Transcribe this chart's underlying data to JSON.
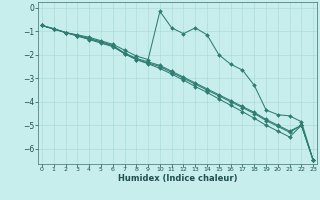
{
  "xlabel": "Humidex (Indice chaleur)",
  "bg_color": "#c8eded",
  "line_color": "#2e7d72",
  "xlim": [
    -0.3,
    23.3
  ],
  "ylim": [
    -6.65,
    0.25
  ],
  "yticks": [
    0,
    -1,
    -2,
    -3,
    -4,
    -5,
    -6
  ],
  "xticks": [
    0,
    1,
    2,
    3,
    4,
    5,
    6,
    7,
    8,
    9,
    10,
    11,
    12,
    13,
    14,
    15,
    16,
    17,
    18,
    19,
    20,
    21,
    22,
    23
  ],
  "lines": [
    {
      "x": [
        0,
        1,
        2,
        3,
        4,
        5,
        6,
        7,
        8,
        9,
        10,
        11,
        12,
        13,
        14,
        15,
        16,
        17,
        18,
        19,
        20,
        21,
        22,
        23
      ],
      "y": [
        -0.75,
        -0.9,
        -1.05,
        -1.15,
        -1.25,
        -1.4,
        -1.55,
        -1.8,
        -2.05,
        -2.2,
        -0.15,
        -0.85,
        -1.1,
        -0.85,
        -1.15,
        -2.0,
        -2.4,
        -2.65,
        -3.3,
        -4.35,
        -4.55,
        -4.6,
        -4.85,
        -6.5
      ]
    },
    {
      "x": [
        0,
        1,
        2,
        3,
        4,
        5,
        6,
        7,
        8,
        9,
        10,
        11,
        12,
        13,
        14,
        15,
        16,
        17,
        18,
        19,
        20,
        21,
        22,
        23
      ],
      "y": [
        -0.75,
        -0.9,
        -1.05,
        -1.2,
        -1.35,
        -1.5,
        -1.65,
        -1.95,
        -2.2,
        -2.35,
        -2.5,
        -2.75,
        -3.0,
        -3.25,
        -3.5,
        -3.75,
        -4.0,
        -4.25,
        -4.5,
        -4.8,
        -5.05,
        -5.3,
        -5.0,
        -6.5
      ]
    },
    {
      "x": [
        0,
        1,
        2,
        3,
        4,
        5,
        6,
        7,
        8,
        9,
        10,
        11,
        12,
        13,
        14,
        15,
        16,
        17,
        18,
        19,
        20,
        21,
        22,
        23
      ],
      "y": [
        -0.75,
        -0.88,
        -1.05,
        -1.18,
        -1.32,
        -1.45,
        -1.6,
        -1.92,
        -2.15,
        -2.3,
        -2.45,
        -2.7,
        -2.95,
        -3.2,
        -3.45,
        -3.7,
        -3.95,
        -4.2,
        -4.45,
        -4.75,
        -5.0,
        -5.25,
        -5.0,
        -6.5
      ]
    },
    {
      "x": [
        0,
        1,
        2,
        3,
        4,
        5,
        6,
        7,
        8,
        9,
        10,
        11,
        12,
        13,
        14,
        15,
        16,
        17,
        18,
        19,
        20,
        21,
        22,
        23
      ],
      "y": [
        -0.75,
        -0.9,
        -1.05,
        -1.18,
        -1.3,
        -1.45,
        -1.62,
        -1.95,
        -2.2,
        -2.38,
        -2.58,
        -2.82,
        -3.08,
        -3.35,
        -3.6,
        -3.88,
        -4.15,
        -4.42,
        -4.7,
        -5.0,
        -5.25,
        -5.5,
        -5.0,
        -6.5
      ]
    }
  ]
}
